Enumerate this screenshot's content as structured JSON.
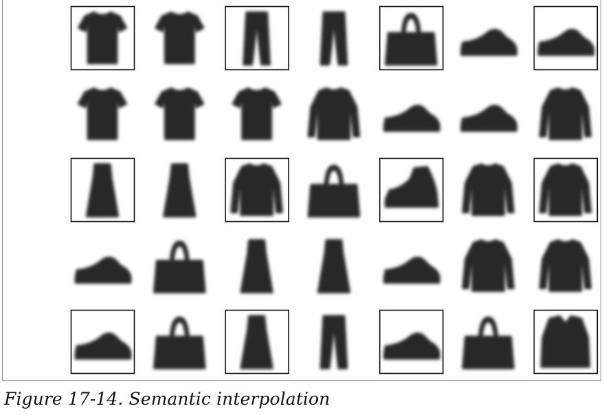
{
  "figure": {
    "caption": "Figure 17-14. Semantic interpolation",
    "grid": {
      "rows": 5,
      "cols": 7,
      "boxed": [
        [
          true,
          false,
          true,
          false,
          true,
          false,
          true
        ],
        [
          false,
          false,
          false,
          false,
          false,
          false,
          false
        ],
        [
          true,
          false,
          true,
          false,
          true,
          false,
          true
        ],
        [
          false,
          false,
          false,
          false,
          false,
          false,
          false
        ],
        [
          true,
          false,
          true,
          false,
          true,
          false,
          true
        ]
      ],
      "cells": [
        [
          "tshirt-icon",
          "tshirt-icon",
          "trouser-icon",
          "trouser-icon",
          "bag-icon",
          "sneaker-icon",
          "sneaker-icon"
        ],
        [
          "tshirt-icon",
          "tshirt-icon",
          "tshirt-icon",
          "pullover-icon",
          "sneaker-icon",
          "sneaker-icon",
          "pullover-icon"
        ],
        [
          "dress-icon",
          "dress-icon",
          "pullover-icon",
          "bag-icon",
          "ankle-boot-icon",
          "pullover-icon",
          "pullover-icon"
        ],
        [
          "sneaker-icon",
          "bag-icon",
          "dress-icon",
          "dress-icon",
          "sneaker-icon",
          "pullover-icon",
          "pullover-icon"
        ],
        [
          "sneaker-icon",
          "bag-icon",
          "dress-icon",
          "trouser-icon",
          "sneaker-icon",
          "bag-icon",
          "coat-icon"
        ]
      ]
    }
  }
}
